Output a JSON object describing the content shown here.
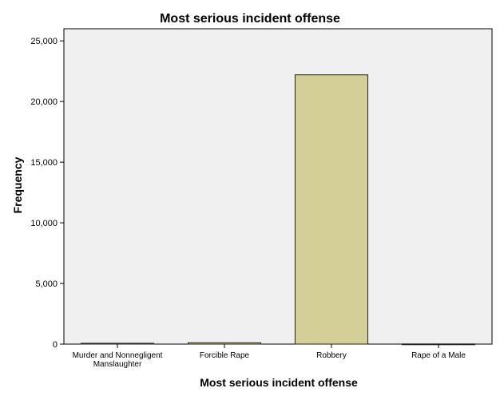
{
  "chart_data": {
    "type": "bar",
    "title": "Most serious incident offense",
    "xlabel": "Most serious incident offense",
    "ylabel": "Frequency",
    "categories": [
      "Murder and Nonnegligent Manslaughter",
      "Forcible Rape",
      "Robbery",
      "Rape of a Male"
    ],
    "category_label_lines": [
      [
        "Murder and Nonnegligent",
        "Manslaughter"
      ],
      [
        "Forcible Rape"
      ],
      [
        "Robbery"
      ],
      [
        "Rape of a Male"
      ]
    ],
    "values": [
      70,
      110,
      22200,
      15
    ],
    "ylim": [
      0,
      26000
    ],
    "yticks": [
      0,
      5000,
      10000,
      15000,
      20000,
      25000
    ],
    "ytick_labels": [
      "0",
      "5,000",
      "10,000",
      "15,000",
      "20,000",
      "25,000"
    ],
    "grid": false,
    "legend": "none",
    "colors": {
      "bar_fill": "#d4ce97",
      "bar_stroke": "#222222",
      "plot_bg": "#f0f0f0",
      "axis": "#000000"
    }
  }
}
